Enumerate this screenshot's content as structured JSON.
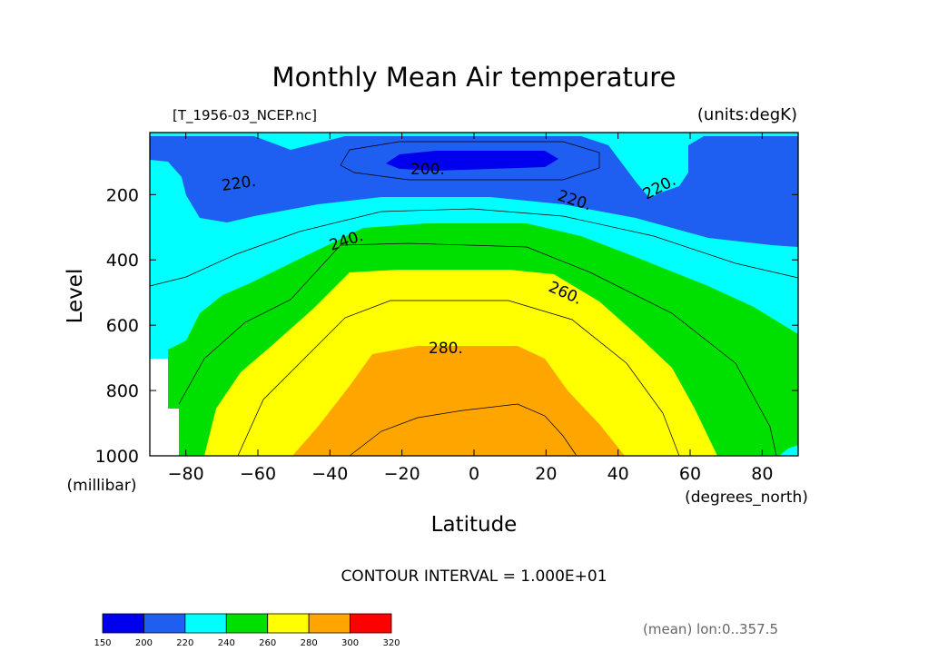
{
  "chart_data": {
    "type": "contour",
    "title": "Monthly Mean Air temperature",
    "file_label": "[T_1956-03_NCEP.nc]",
    "units_label": "(units:degK)",
    "xlabel": "Latitude",
    "x_units": "(degrees_north)",
    "ylabel": "Level",
    "y_units": "(millibar)",
    "xlim": [
      -90,
      90
    ],
    "ylim": [
      1000,
      10
    ],
    "y_reversed": true,
    "x_ticks": [
      "−80",
      "−60",
      "−40",
      "−20",
      "0",
      "20",
      "40",
      "60",
      "80"
    ],
    "x_tick_values": [
      -80,
      -60,
      -40,
      -20,
      0,
      20,
      40,
      60,
      80
    ],
    "y_ticks": [
      "200",
      "400",
      "600",
      "800",
      "1000"
    ],
    "y_tick_values": [
      200,
      400,
      600,
      800,
      1000
    ],
    "contour_interval": "CONTOUR INTERVAL = 1.000E+01",
    "contour_labels": [
      "200.",
      "220.",
      "220.",
      "220.",
      "240.",
      "260.",
      "280."
    ],
    "note": "(mean) lon:0..357.5",
    "colorbar": {
      "levels": [
        "150",
        "200",
        "220",
        "240",
        "260",
        "280",
        "300",
        "320"
      ],
      "colors": [
        "#0000ee",
        "#1e5ef0",
        "#00ffff",
        "#00e000",
        "#ffff00",
        "#ffa500",
        "#ff0000"
      ]
    },
    "fill_colors": {
      "below_200": "#0000ee",
      "200_220": "#1e5ef0",
      "220_240": "#00ffff",
      "240_260": "#00e000",
      "260_280": "#ffff00",
      "280_300": "#ffa500",
      "missing": "#ffffff"
    }
  }
}
